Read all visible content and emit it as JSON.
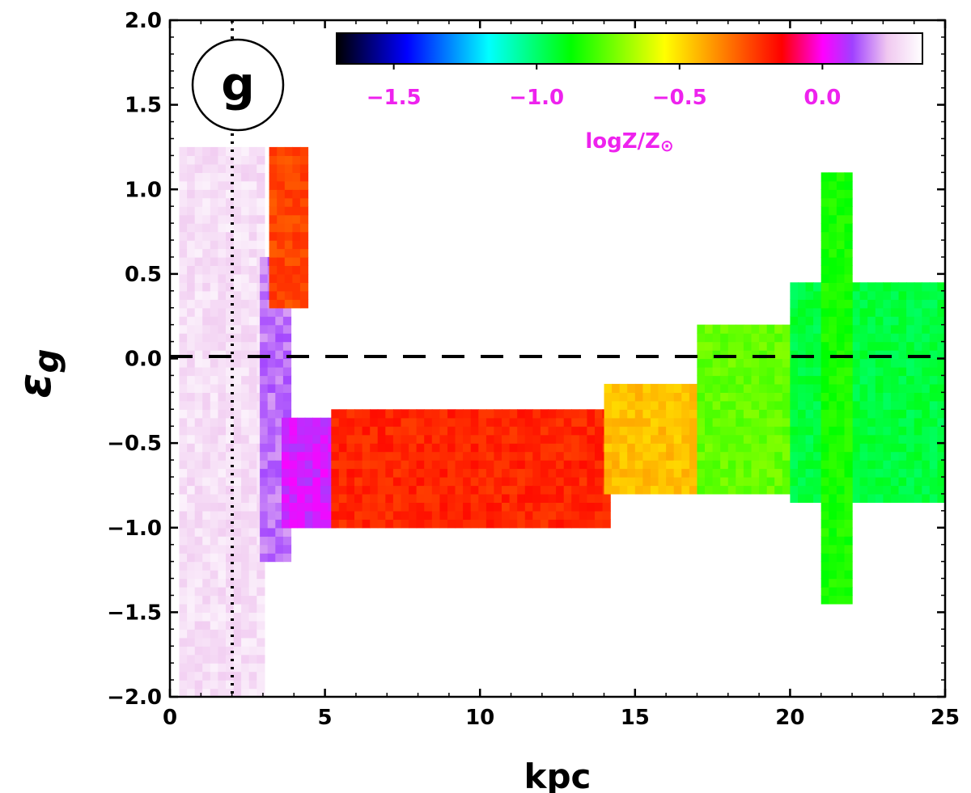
{
  "panel_label": "g",
  "colors": {
    "accent_text": "#ee22ee",
    "colormap": [
      "#000000",
      "#0000ff",
      "#00ffff",
      "#00ff00",
      "#ffff00",
      "#ff8000",
      "#ff0000",
      "#ff00ff",
      "#a040ff",
      "#f0c8f0",
      "#ffffff"
    ]
  },
  "chart_data": {
    "type": "heatmap",
    "xlabel": "kpc",
    "ylabel": "ε",
    "ylabel_sub": "g",
    "xlim": [
      0,
      25
    ],
    "ylim": [
      -2.0,
      2.0
    ],
    "x_ticks": [
      "0",
      "5",
      "10",
      "15",
      "20",
      "25"
    ],
    "y_ticks": [
      "2.0",
      "1.5",
      "1.0",
      "0.5",
      "0.0",
      "−0.5",
      "−1.0",
      "−1.5",
      "−2.0"
    ],
    "reference_lines": [
      {
        "orientation": "horizontal",
        "value": 0.0,
        "style": "dashed"
      },
      {
        "orientation": "vertical",
        "value": 2.0,
        "style": "dotted"
      }
    ],
    "colorbar": {
      "label": "logZ/Z",
      "label_symbol": "⊙",
      "range": [
        -1.7,
        0.35
      ],
      "ticks": [
        "−1.5",
        "−1.0",
        "−0.5",
        "0.0"
      ],
      "tick_values": [
        -1.5,
        -1.0,
        -0.5,
        0.0
      ]
    },
    "regions": [
      {
        "x": [
          0.3,
          2.9
        ],
        "y": [
          -2.0,
          1.25
        ],
        "logZ": 0.28
      },
      {
        "x": [
          2.9,
          3.8
        ],
        "y": [
          -1.2,
          0.6
        ],
        "logZ": 0.15
      },
      {
        "x": [
          3.2,
          4.3
        ],
        "y": [
          0.3,
          1.25
        ],
        "logZ": -0.25
      },
      {
        "x": [
          3.6,
          5.2
        ],
        "y": [
          -1.0,
          -0.35
        ],
        "logZ": 0.05
      },
      {
        "x": [
          5.2,
          14.0
        ],
        "y": [
          -1.0,
          -0.3
        ],
        "logZ": -0.2
      },
      {
        "x": [
          14.0,
          17.0
        ],
        "y": [
          -0.8,
          -0.15
        ],
        "logZ": -0.45
      },
      {
        "x": [
          17.0,
          20.0
        ],
        "y": [
          -0.8,
          0.2
        ],
        "logZ": -0.75
      },
      {
        "x": [
          20.0,
          25.0
        ],
        "y": [
          -0.85,
          0.45
        ],
        "logZ": -0.95
      },
      {
        "x": [
          21.0,
          21.8
        ],
        "y": [
          -1.45,
          1.1
        ],
        "logZ": -0.85
      }
    ]
  }
}
